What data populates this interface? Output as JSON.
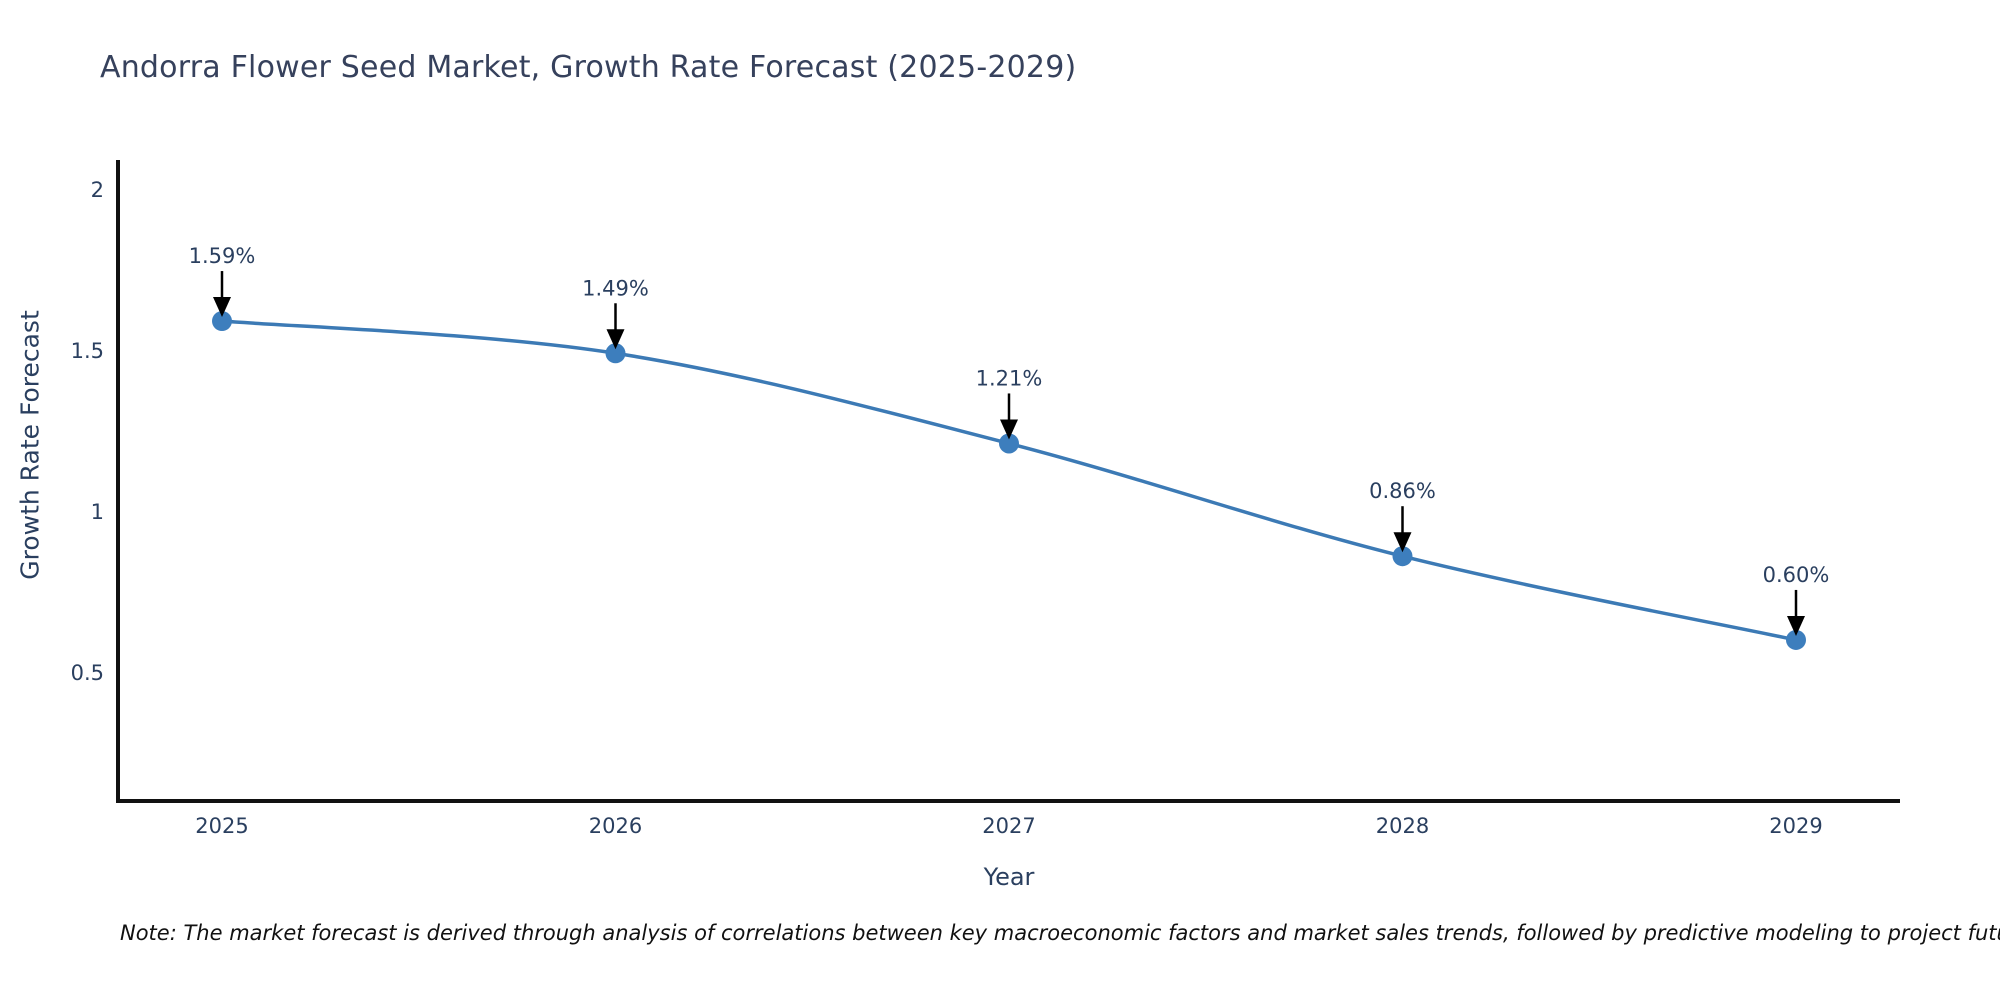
{
  "note": "Note: The market forecast is derived through analysis of correlations between key macroeconomic factors and market sales trends, followed by predictive modeling to project future sales",
  "chart_data": {
    "type": "line",
    "title": "Andorra Flower Seed Market, Growth Rate Forecast (2025-2029)",
    "xlabel": "Year",
    "ylabel": "Growth Rate Forecast",
    "x": [
      2025,
      2026,
      2027,
      2028,
      2029
    ],
    "series": [
      {
        "name": "Growth Rate Forecast",
        "values": [
          1.59,
          1.49,
          1.21,
          0.86,
          0.6
        ]
      }
    ],
    "point_labels": [
      "1.59%",
      "1.49%",
      "1.21%",
      "0.86%",
      "0.60%"
    ],
    "ylim": [
      0.1,
      2.09
    ],
    "yticks": [
      0.5,
      1,
      1.5,
      2
    ],
    "grid": false,
    "legend": "none",
    "line_shape": "spline",
    "colors": {
      "line": "#3c7ab5",
      "marker": "#3d7ebd",
      "axis": "#111111",
      "tick_text": "#2a3f5f",
      "annotation_text": "#2a3f5f",
      "annotation_arrow": "#000000"
    }
  }
}
